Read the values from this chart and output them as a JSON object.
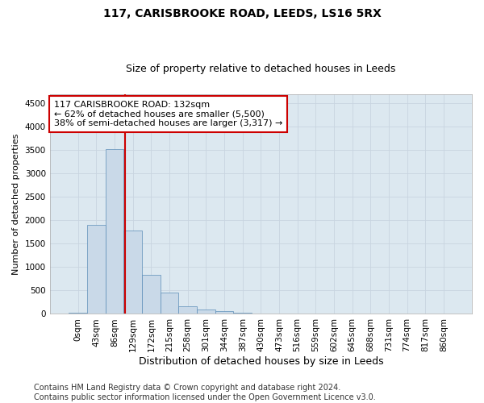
{
  "title1": "117, CARISBROOKE ROAD, LEEDS, LS16 5RX",
  "title2": "Size of property relative to detached houses in Leeds",
  "xlabel": "Distribution of detached houses by size in Leeds",
  "ylabel": "Number of detached properties",
  "bar_color": "#c9d9e8",
  "bar_edge_color": "#5b8db8",
  "grid_color": "#c8d4e0",
  "bg_color": "#dce8f0",
  "vline_color": "#cc0000",
  "vline_x_index": 3,
  "annotation_text": "117 CARISBROOKE ROAD: 132sqm\n← 62% of detached houses are smaller (5,500)\n38% of semi-detached houses are larger (3,317) →",
  "annotation_box_color": "#ffffff",
  "annotation_box_edge": "#cc0000",
  "bin_labels": [
    "0sqm",
    "43sqm",
    "86sqm",
    "129sqm",
    "172sqm",
    "215sqm",
    "258sqm",
    "301sqm",
    "344sqm",
    "387sqm",
    "430sqm",
    "473sqm",
    "516sqm",
    "559sqm",
    "602sqm",
    "645sqm",
    "688sqm",
    "731sqm",
    "774sqm",
    "817sqm",
    "860sqm"
  ],
  "bar_heights": [
    25,
    1900,
    3520,
    1780,
    830,
    450,
    155,
    100,
    55,
    30,
    15,
    5,
    2,
    1,
    0,
    0,
    0,
    0,
    0,
    0,
    0
  ],
  "ylim": [
    0,
    4700
  ],
  "yticks": [
    0,
    500,
    1000,
    1500,
    2000,
    2500,
    3000,
    3500,
    4000,
    4500
  ],
  "footer_text": "Contains HM Land Registry data © Crown copyright and database right 2024.\nContains public sector information licensed under the Open Government Licence v3.0.",
  "title1_fontsize": 10,
  "title2_fontsize": 9,
  "xlabel_fontsize": 9,
  "ylabel_fontsize": 8,
  "tick_fontsize": 7.5,
  "annotation_fontsize": 8,
  "footer_fontsize": 7
}
